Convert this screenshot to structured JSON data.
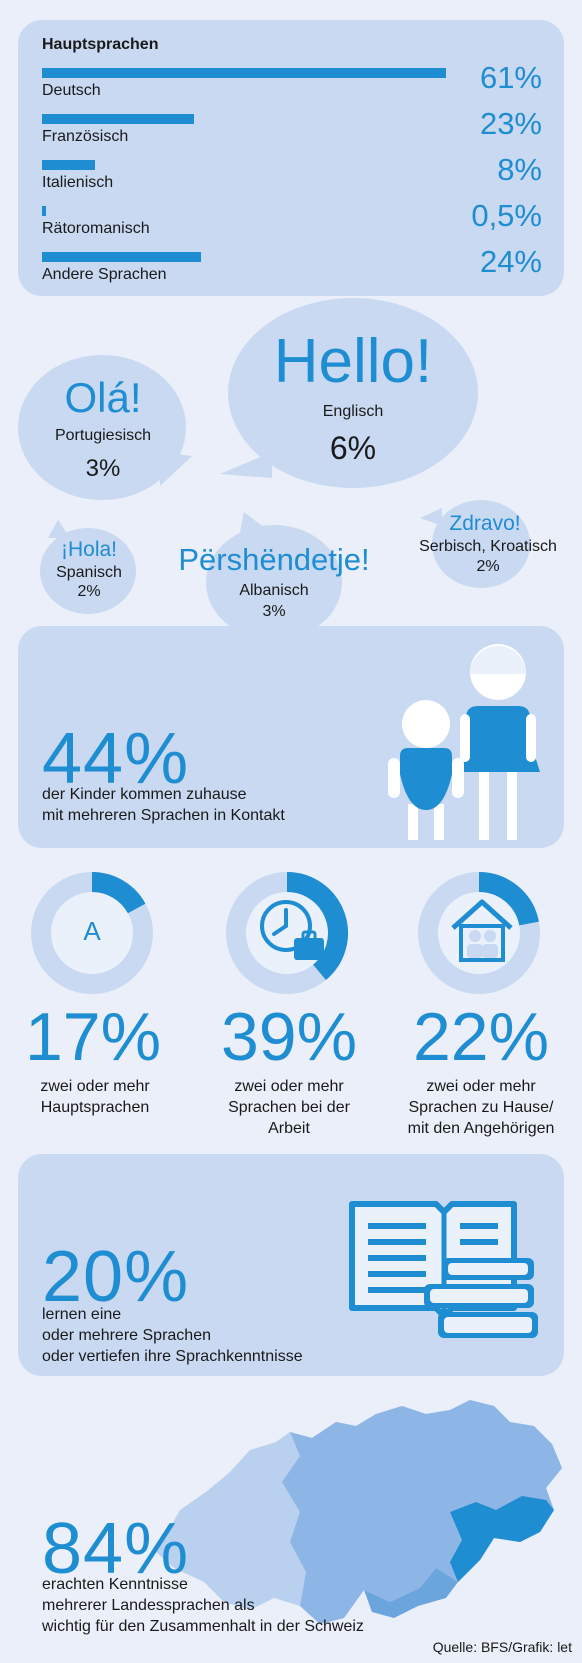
{
  "chart_data": {
    "type": "bar",
    "title": "Hauptsprachen",
    "categories": [
      "Deutsch",
      "Französisch",
      "Italienisch",
      "Rätoromanisch",
      "Andere Sprachen"
    ],
    "values": [
      61,
      23,
      8,
      0.5,
      24
    ],
    "value_labels": [
      "61%",
      "23%",
      "8%",
      "0,5%",
      "24%"
    ],
    "ylim": [
      0,
      61
    ]
  },
  "bubbles": [
    {
      "greeting": "Hello!",
      "language": "Englisch",
      "pct": "6%"
    },
    {
      "greeting": "Olá!",
      "language": "Portugiesisch",
      "pct": "3%"
    },
    {
      "greeting": "¡Hola!",
      "language": "Spanisch",
      "pct": "2%"
    },
    {
      "greeting": "Përshëndetje!",
      "language": "Albanisch",
      "pct": "3%"
    },
    {
      "greeting": "Zdravo!",
      "language": "Serbisch, Kroatisch",
      "pct": "2%"
    }
  ],
  "kids": {
    "pct": "44%",
    "line1": "der Kinder kommen zuhause",
    "line2": "mit mehreren Sprachen in Kontakt"
  },
  "rings": [
    {
      "value": 17,
      "pct": "17%",
      "icon": "letter-a-bubble-icon",
      "glyph": "A",
      "lines": [
        "zwei oder mehr",
        "Hauptsprachen"
      ]
    },
    {
      "value": 39,
      "pct": "39%",
      "icon": "clock-briefcase-icon",
      "lines": [
        "zwei oder mehr",
        "Sprachen bei der",
        "Arbeit"
      ]
    },
    {
      "value": 22,
      "pct": "22%",
      "icon": "house-family-icon",
      "lines": [
        "zwei oder mehr",
        "Sprachen zu Hause/",
        "mit den Angehörigen"
      ]
    }
  ],
  "learn": {
    "pct": "20%",
    "lines": [
      "lernen eine",
      "oder mehrere Sprachen",
      "oder vertiefen ihre Sprachkenntnisse"
    ]
  },
  "swiss": {
    "pct": "84%",
    "lines": [
      "erachten Kenntnisse",
      "mehrerer Landessprachen als",
      "wichtig für den Zusammenhalt in der Schweiz"
    ]
  },
  "source": "Quelle: BFS/Grafik: let",
  "colors": {
    "accent": "#1f8dd1",
    "card": "#c8d9f1",
    "background": "#eaeff9"
  }
}
